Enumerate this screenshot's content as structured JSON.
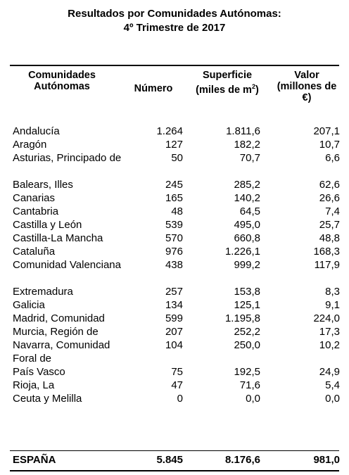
{
  "title": {
    "line1": "Resultados por Comunidades Autónomas:",
    "line2": "4º Trimestre de 2017"
  },
  "headers": {
    "col1_line1": "Comunidades",
    "col1_line2": "Autónomas",
    "col2": "Número",
    "col3_line1": "Superficie",
    "col3_line2_pre": "(miles de m",
    "col3_sup": "2",
    "col3_line2_post": ")",
    "col4_line1": "Valor",
    "col4_line2": "(millones de",
    "col4_line3": "€)"
  },
  "rows": [
    {
      "name": "Andalucía",
      "numero": "1.264",
      "superficie": "1.811,6",
      "valor": "207,1"
    },
    {
      "name": "Aragón",
      "numero": "127",
      "superficie": "182,2",
      "valor": "10,7"
    },
    {
      "name": "Asturias, Principado de",
      "numero": "50",
      "superficie": "70,7",
      "valor": "6,6"
    },
    {
      "name": "Balears, Illes",
      "numero": "245",
      "superficie": "285,2",
      "valor": "62,6"
    },
    {
      "name": "Canarias",
      "numero": "165",
      "superficie": "140,2",
      "valor": "26,6"
    },
    {
      "name": "Cantabria",
      "numero": "48",
      "superficie": "64,5",
      "valor": "7,4"
    },
    {
      "name": "Castilla y León",
      "numero": "539",
      "superficie": "495,0",
      "valor": "25,7"
    },
    {
      "name": "Castilla-La Mancha",
      "numero": "570",
      "superficie": "660,8",
      "valor": "48,8"
    },
    {
      "name": "Cataluña",
      "numero": "976",
      "superficie": "1.226,1",
      "valor": "168,3"
    },
    {
      "name": "Comunidad Valenciana",
      "numero": "438",
      "superficie": "999,2",
      "valor": "117,9"
    },
    {
      "name": "Extremadura",
      "numero": "257",
      "superficie": "153,8",
      "valor": "8,3"
    },
    {
      "name": "Galicia",
      "numero": "134",
      "superficie": "125,1",
      "valor": "9,1"
    },
    {
      "name": "Madrid, Comunidad",
      "numero": "599",
      "superficie": "1.195,8",
      "valor": "224,0"
    },
    {
      "name": "Murcia, Región de",
      "numero": "207",
      "superficie": "252,2",
      "valor": "17,3"
    },
    {
      "name": "Navarra, Comunidad Foral de",
      "numero": "104",
      "superficie": "250,0",
      "valor": "10,2"
    },
    {
      "name": "País Vasco",
      "numero": "75",
      "superficie": "192,5",
      "valor": "24,9"
    },
    {
      "name": "Rioja, La",
      "numero": "47",
      "superficie": "71,6",
      "valor": "5,4"
    },
    {
      "name": "Ceuta y Melilla",
      "numero": "0",
      "superficie": "0,0",
      "valor": "0,0"
    }
  ],
  "total": {
    "name": "ESPAÑA",
    "numero": "5.845",
    "superficie": "8.176,6",
    "valor": "981,0"
  }
}
